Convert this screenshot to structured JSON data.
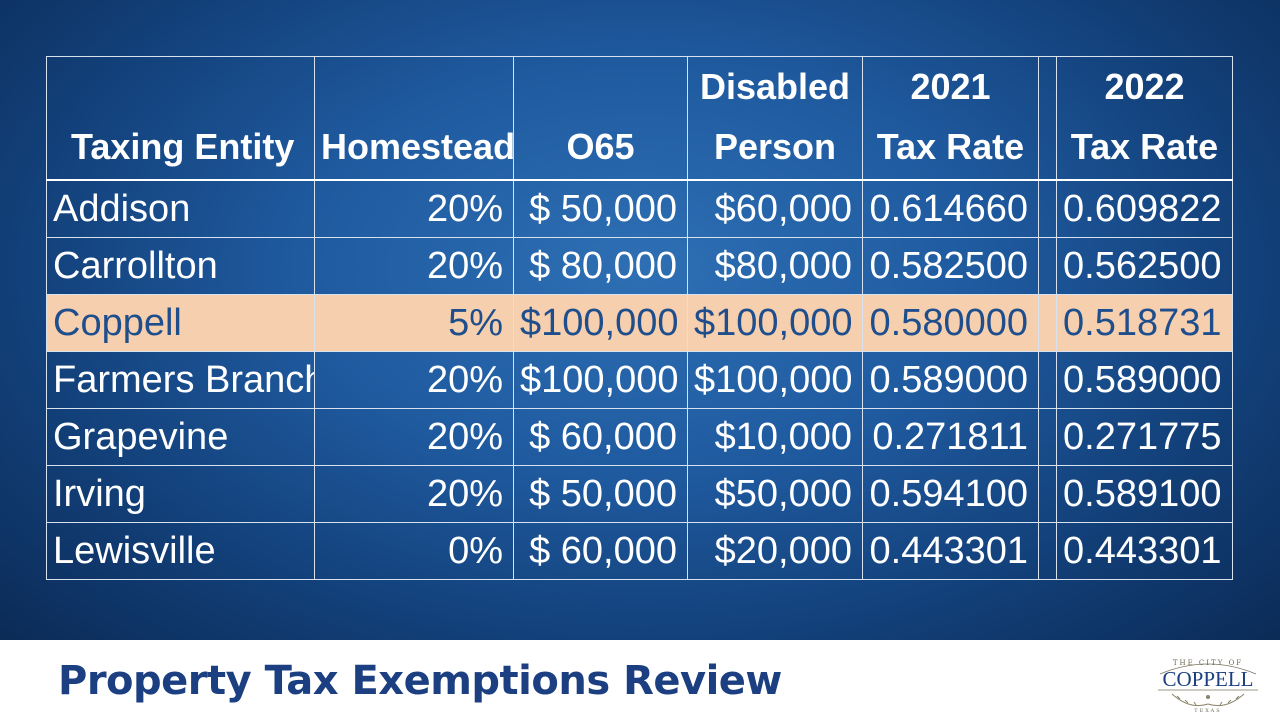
{
  "table": {
    "headers": [
      [
        "",
        "Taxing Entity"
      ],
      [
        "",
        "Homestead"
      ],
      [
        "",
        "O65"
      ],
      [
        "Disabled",
        "Person"
      ],
      [
        "2021",
        "Tax Rate"
      ],
      [
        "2022",
        "Tax Rate"
      ]
    ],
    "rows": [
      {
        "entity": "Addison",
        "homestead": "20%",
        "o65": "$ 50,000",
        "disabled": "$60,000",
        "rate2021": "0.614660",
        "rate2022": "0.609822"
      },
      {
        "entity": "Carrollton",
        "homestead": "20%",
        "o65": "$ 80,000",
        "disabled": "$80,000",
        "rate2021": "0.582500",
        "rate2022": "0.562500"
      },
      {
        "entity": "Coppell",
        "homestead": "5%",
        "o65": "$100,000",
        "disabled": "$100,000",
        "rate2021": "0.580000",
        "rate2022": "0.518731"
      },
      {
        "entity": "Farmers Branch",
        "homestead": "20%",
        "o65": "$100,000",
        "disabled": "$100,000",
        "rate2021": "0.589000",
        "rate2022": "0.589000"
      },
      {
        "entity": "Grapevine",
        "homestead": "20%",
        "o65": "$ 60,000",
        "disabled": "$10,000",
        "rate2021": "0.271811",
        "rate2022": "0.271775"
      },
      {
        "entity": "Irving",
        "homestead": "20%",
        "o65": "$ 50,000",
        "disabled": "$50,000",
        "rate2021": "0.594100",
        "rate2022": "0.589100"
      },
      {
        "entity": "Lewisville",
        "homestead": "0%",
        "o65": "$ 60,000",
        "disabled": "$20,000",
        "rate2021": "0.443301",
        "rate2022": "0.443301"
      }
    ],
    "highlight_color": "#f6cfae",
    "highlight_text_color": "#1f4e8c"
  },
  "footer": {
    "title": "Property Tax Exemptions Review"
  },
  "logo": {
    "top_text": "THE CITY OF",
    "name": "COPPELL",
    "bottom_text": "TEXAS"
  },
  "colors": {
    "background": "#1f5a9f",
    "title": "#1b3f80"
  }
}
